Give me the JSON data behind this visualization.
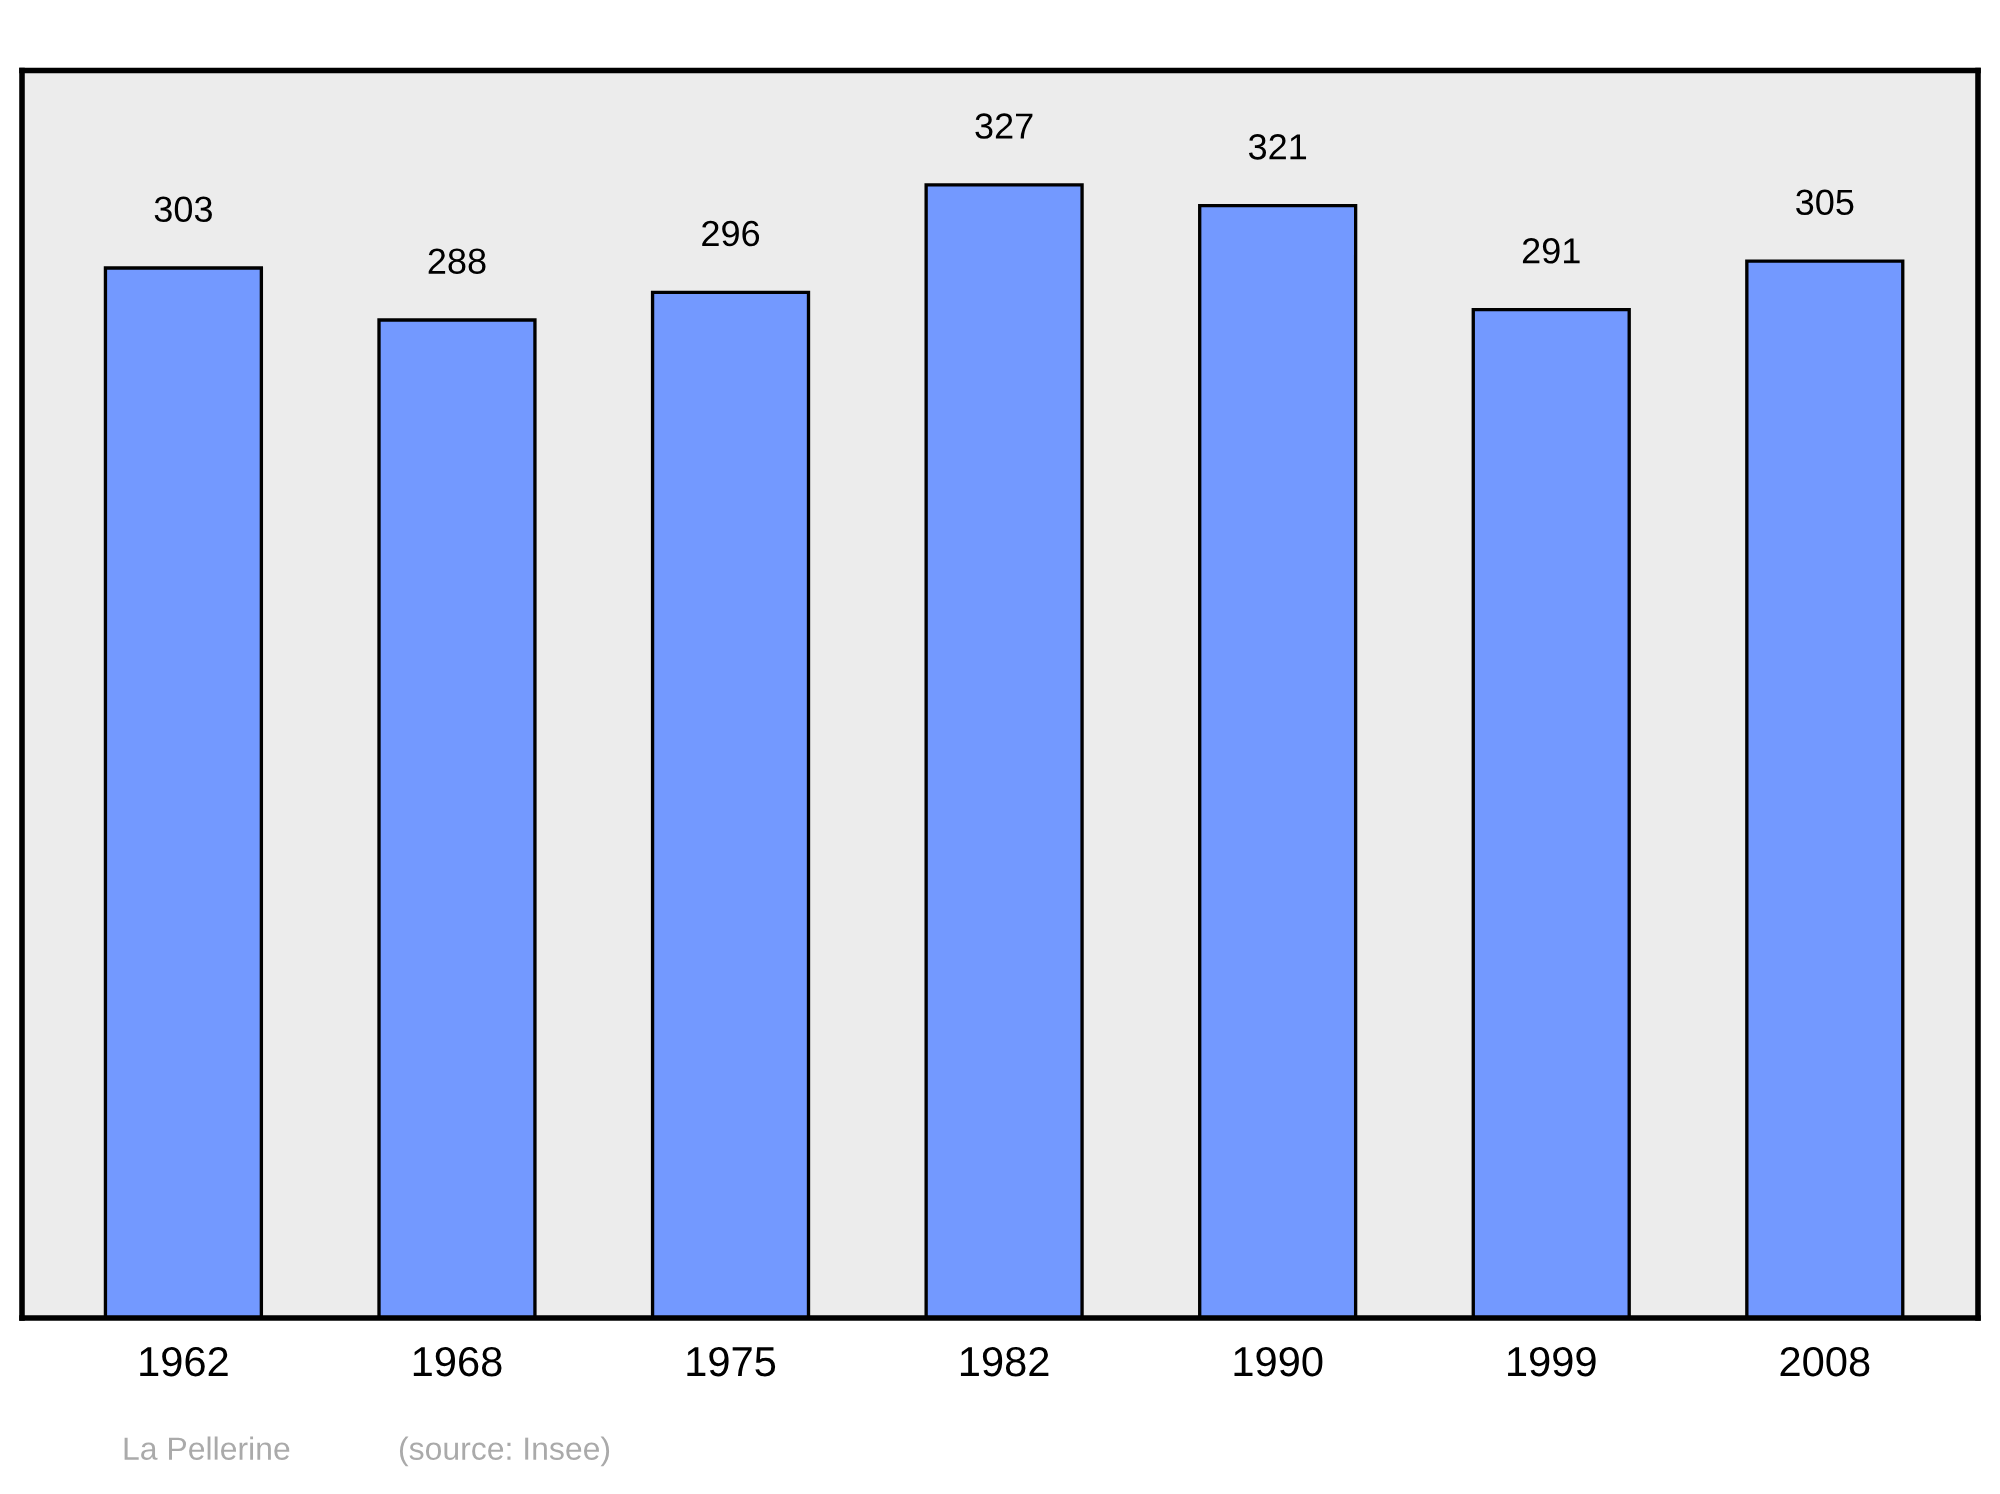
{
  "chart_data": {
    "type": "bar",
    "categories": [
      "1962",
      "1968",
      "1975",
      "1982",
      "1990",
      "1999",
      "2008"
    ],
    "values": [
      303,
      288,
      296,
      327,
      321,
      291,
      305
    ],
    "color": "#7399ff",
    "ylim": [
      0,
      360
    ],
    "data_labels": true,
    "grid": false,
    "legend": false,
    "tick_labels": "x",
    "annotations": [
      "La Pellerine",
      "(source: Insee)"
    ]
  }
}
